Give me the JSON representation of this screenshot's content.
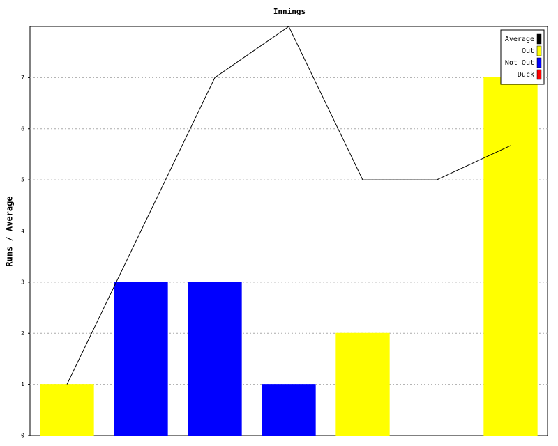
{
  "chart_data": {
    "type": "bar",
    "title": "Innings",
    "y_label": "Runs / Average",
    "categories": [
      null,
      null,
      null,
      null,
      null,
      null,
      null
    ],
    "series": [
      {
        "name": "Average",
        "color": "#000000",
        "kind": "line",
        "values": [
          1,
          4,
          7,
          8,
          5,
          5,
          5.67
        ]
      },
      {
        "name": "Out",
        "color": "#ffff00",
        "kind": "bar",
        "values": [
          1,
          null,
          null,
          null,
          2,
          null,
          7
        ]
      },
      {
        "name": "Not Out",
        "color": "#0000ff",
        "kind": "bar",
        "values": [
          null,
          3,
          3,
          1,
          null,
          0,
          null
        ]
      },
      {
        "name": "Duck",
        "color": "#ff0000",
        "kind": "bar",
        "values": [
          null,
          null,
          null,
          null,
          null,
          null,
          null
        ]
      }
    ],
    "ylim": [
      0,
      8
    ],
    "yticks": [
      0,
      1,
      2,
      3,
      4,
      5,
      6,
      7
    ],
    "grid": true,
    "legend": "top-right"
  }
}
